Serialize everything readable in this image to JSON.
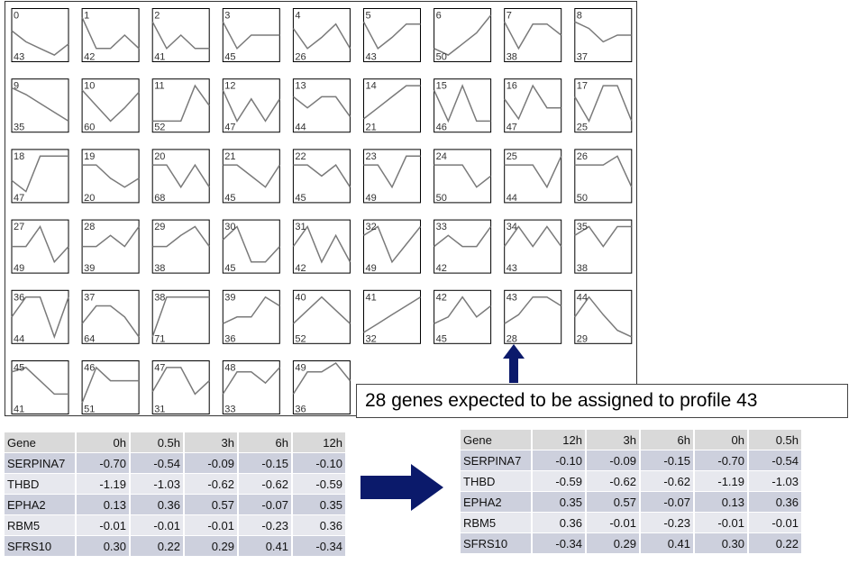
{
  "chart_data": {
    "type": "line",
    "profiles": [
      {
        "id": "0",
        "count": "43",
        "values": [
          0.7,
          0.45,
          0.3,
          0.15,
          0.4
        ]
      },
      {
        "id": "1",
        "count": "42",
        "values": [
          1.0,
          0.3,
          0.3,
          0.6,
          0.3
        ]
      },
      {
        "id": "2",
        "count": "41",
        "values": [
          0.9,
          0.3,
          0.6,
          0.3,
          0.3
        ]
      },
      {
        "id": "3",
        "count": "45",
        "values": [
          0.9,
          0.3,
          0.6,
          0.6,
          0.6
        ]
      },
      {
        "id": "4",
        "count": "26",
        "values": [
          0.75,
          0.3,
          0.55,
          0.85,
          0.3
        ]
      },
      {
        "id": "5",
        "count": "43",
        "values": [
          0.9,
          0.3,
          0.55,
          0.85,
          0.85
        ]
      },
      {
        "id": "6",
        "count": "50",
        "values": [
          0.3,
          0.15,
          0.4,
          0.65,
          1.05
        ]
      },
      {
        "id": "7",
        "count": "38",
        "values": [
          0.9,
          0.3,
          0.85,
          0.85,
          0.6
        ]
      },
      {
        "id": "8",
        "count": "37",
        "values": [
          0.9,
          0.75,
          0.45,
          0.6,
          0.6
        ]
      },
      {
        "id": "9",
        "count": "35",
        "values": [
          1.0,
          0.85,
          0.65,
          0.45,
          0.25
        ]
      },
      {
        "id": "10",
        "count": "60",
        "values": [
          0.95,
          0.6,
          0.25,
          0.55,
          0.9
        ]
      },
      {
        "id": "11",
        "count": "52",
        "values": [
          0.25,
          0.25,
          0.25,
          1.05,
          0.6
        ]
      },
      {
        "id": "12",
        "count": "47",
        "values": [
          0.95,
          0.25,
          0.75,
          0.25,
          0.75
        ]
      },
      {
        "id": "13",
        "count": "44",
        "values": [
          0.8,
          0.55,
          0.8,
          0.8,
          0.35
        ]
      },
      {
        "id": "14",
        "count": "21",
        "values": [
          0.3,
          0.55,
          0.8,
          1.05,
          1.05
        ]
      },
      {
        "id": "15",
        "count": "46",
        "values": [
          0.95,
          0.25,
          1.05,
          0.25,
          0.25
        ]
      },
      {
        "id": "16",
        "count": "47",
        "values": [
          0.75,
          0.3,
          1.05,
          0.55,
          0.55
        ]
      },
      {
        "id": "17",
        "count": "25",
        "values": [
          0.8,
          0.25,
          1.05,
          1.05,
          0.25
        ]
      },
      {
        "id": "18",
        "count": "47",
        "values": [
          0.5,
          0.25,
          1.05,
          1.05,
          1.05
        ]
      },
      {
        "id": "19",
        "count": "20",
        "values": [
          0.85,
          0.85,
          0.55,
          0.35,
          0.55
        ]
      },
      {
        "id": "20",
        "count": "68",
        "values": [
          0.85,
          0.85,
          0.35,
          0.85,
          0.35
        ]
      },
      {
        "id": "21",
        "count": "45",
        "values": [
          0.85,
          0.85,
          0.6,
          0.35,
          0.85
        ]
      },
      {
        "id": "22",
        "count": "45",
        "values": [
          0.85,
          0.85,
          0.6,
          0.85,
          0.35
        ]
      },
      {
        "id": "23",
        "count": "49",
        "values": [
          0.85,
          0.85,
          0.35,
          1.05,
          1.05
        ]
      },
      {
        "id": "24",
        "count": "50",
        "values": [
          0.85,
          0.85,
          0.85,
          0.35,
          0.6
        ]
      },
      {
        "id": "25",
        "count": "44",
        "values": [
          0.85,
          0.85,
          0.85,
          0.35,
          1.05
        ]
      },
      {
        "id": "26",
        "count": "50",
        "values": [
          0.85,
          0.85,
          0.85,
          1.05,
          0.35
        ]
      },
      {
        "id": "27",
        "count": "49",
        "values": [
          0.6,
          0.6,
          1.05,
          0.25,
          0.6
        ]
      },
      {
        "id": "28",
        "count": "39",
        "values": [
          0.6,
          0.6,
          0.85,
          0.6,
          1.05
        ]
      },
      {
        "id": "29",
        "count": "38",
        "values": [
          0.6,
          0.6,
          0.85,
          1.05,
          0.6
        ]
      },
      {
        "id": "30",
        "count": "45",
        "values": [
          0.75,
          1.05,
          0.25,
          0.25,
          0.6
        ]
      },
      {
        "id": "31",
        "count": "42",
        "values": [
          0.6,
          1.05,
          0.25,
          0.85,
          0.25
        ]
      },
      {
        "id": "32",
        "count": "49",
        "values": [
          0.85,
          1.05,
          0.25,
          0.65,
          1.05
        ]
      },
      {
        "id": "33",
        "count": "42",
        "values": [
          0.6,
          0.85,
          0.6,
          0.6,
          1.05
        ]
      },
      {
        "id": "34",
        "count": "43",
        "values": [
          0.6,
          1.05,
          0.6,
          1.05,
          0.6
        ]
      },
      {
        "id": "35",
        "count": "38",
        "values": [
          0.85,
          1.05,
          0.6,
          1.05,
          1.05
        ]
      },
      {
        "id": "36",
        "count": "44",
        "values": [
          0.6,
          1.05,
          1.05,
          0.15,
          1.05
        ]
      },
      {
        "id": "37",
        "count": "64",
        "values": [
          0.45,
          0.85,
          0.85,
          0.6,
          0.15
        ]
      },
      {
        "id": "38",
        "count": "71",
        "values": [
          0.15,
          1.05,
          1.05,
          1.05,
          1.05
        ]
      },
      {
        "id": "39",
        "count": "36",
        "values": [
          0.45,
          0.6,
          0.6,
          1.05,
          0.85
        ]
      },
      {
        "id": "40",
        "count": "52",
        "values": [
          0.45,
          0.75,
          1.05,
          0.75,
          0.45
        ]
      },
      {
        "id": "41",
        "count": "32",
        "values": [
          0.25,
          0.45,
          0.65,
          0.85,
          1.05
        ]
      },
      {
        "id": "42",
        "count": "45",
        "values": [
          0.45,
          0.6,
          1.05,
          0.6,
          0.85
        ]
      },
      {
        "id": "43",
        "count": "28",
        "values": [
          0.45,
          0.65,
          1.05,
          1.05,
          0.85
        ]
      },
      {
        "id": "44",
        "count": "29",
        "values": [
          0.6,
          1.05,
          0.65,
          0.3,
          0.15
        ]
      },
      {
        "id": "45",
        "count": "41",
        "values": [
          0.95,
          1.05,
          0.75,
          0.45,
          0.45
        ]
      },
      {
        "id": "46",
        "count": "51",
        "values": [
          0.25,
          1.05,
          0.75,
          0.75,
          0.75
        ]
      },
      {
        "id": "47",
        "count": "31",
        "values": [
          0.5,
          1.05,
          1.05,
          0.45,
          0.75
        ]
      },
      {
        "id": "48",
        "count": "33",
        "values": [
          0.45,
          0.95,
          0.95,
          0.7,
          1.05
        ]
      },
      {
        "id": "49",
        "count": "36",
        "values": [
          0.45,
          0.95,
          0.95,
          1.15,
          0.75
        ]
      }
    ]
  },
  "callout": {
    "text": "28 genes expected to be assigned to profile 43"
  },
  "table_left": {
    "headers": [
      "Gene",
      "0h",
      "0.5h",
      "3h",
      "6h",
      "12h"
    ],
    "rows": [
      [
        "SERPINA7",
        "-0.70",
        "-0.54",
        "-0.09",
        "-0.15",
        "-0.10"
      ],
      [
        "THBD",
        "-1.19",
        "-1.03",
        "-0.62",
        "-0.62",
        "-0.59"
      ],
      [
        "EPHA2",
        "0.13",
        "0.36",
        "0.57",
        "-0.07",
        "0.35"
      ],
      [
        "RBM5",
        "-0.01",
        "-0.01",
        "-0.01",
        "-0.23",
        "0.36"
      ],
      [
        "SFRS10",
        "0.30",
        "0.22",
        "0.29",
        "0.41",
        "-0.34"
      ]
    ]
  },
  "table_right": {
    "headers": [
      "Gene",
      "12h",
      "3h",
      "6h",
      "0h",
      "0.5h"
    ],
    "rows": [
      [
        "SERPINA7",
        "-0.10",
        "-0.09",
        "-0.15",
        "-0.70",
        "-0.54"
      ],
      [
        "THBD",
        "-0.59",
        "-0.62",
        "-0.62",
        "-1.19",
        "-1.03"
      ],
      [
        "EPHA2",
        "0.35",
        "0.57",
        "-0.07",
        "0.13",
        "0.36"
      ],
      [
        "RBM5",
        "0.36",
        "-0.01",
        "-0.23",
        "-0.01",
        "-0.01"
      ],
      [
        "SFRS10",
        "-0.34",
        "0.29",
        "0.41",
        "0.30",
        "0.22"
      ]
    ]
  },
  "colors": {
    "arrow": "#0b1a6b",
    "profile_line": "#7a7a7a",
    "header_bg": "#d9d9d9",
    "row_odd": "#cdd0dd",
    "row_even": "#e7e8ee"
  },
  "icons": {
    "up_arrow": "up-arrow-icon",
    "right_arrow": "right-arrow-icon"
  }
}
